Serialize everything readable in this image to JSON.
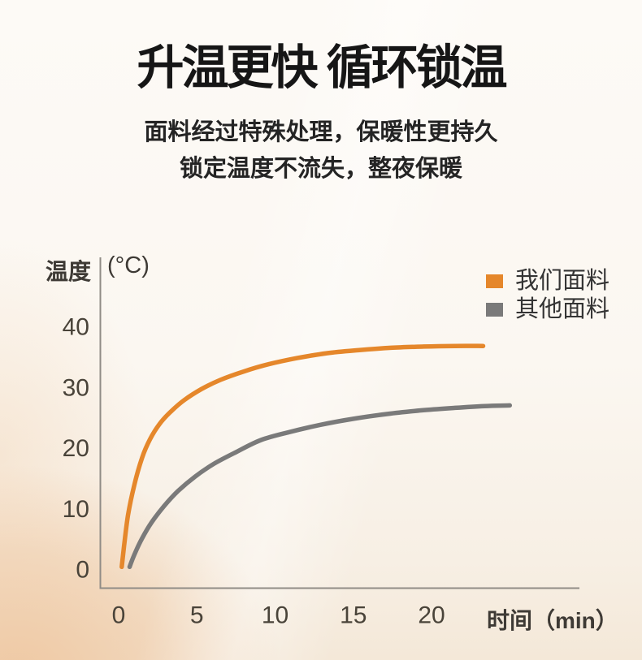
{
  "header": {
    "title": "升温更快 循环锁温",
    "subtitle_lines": [
      "面料经过特殊处理，保暖性更持久",
      "锁定温度不流失，整夜保暖"
    ]
  },
  "chart_data": {
    "type": "line",
    "title": "",
    "ylabel": "温度",
    "y_unit_label": "(°C)",
    "xlabel": "时间（min）",
    "x_ticks": [
      0,
      5,
      10,
      15,
      20
    ],
    "y_ticks": [
      0,
      10,
      20,
      30,
      40
    ],
    "xlim": [
      0,
      29.5
    ],
    "ylim": [
      0,
      51
    ],
    "grid": false,
    "legend_position": "top-right",
    "series": [
      {
        "name": "我们面料",
        "color": "#E5872B",
        "points": [
          [
            0.2,
            0.5
          ],
          [
            0.35,
            4
          ],
          [
            0.6,
            9
          ],
          [
            1.0,
            14
          ],
          [
            1.5,
            18.5
          ],
          [
            2.0,
            21.5
          ],
          [
            2.6,
            24
          ],
          [
            3.3,
            26
          ],
          [
            4.2,
            28
          ],
          [
            5.3,
            29.8
          ],
          [
            6.5,
            31.3
          ],
          [
            8.0,
            32.7
          ],
          [
            9.6,
            33.9
          ],
          [
            11.4,
            34.9
          ],
          [
            13.3,
            35.7
          ],
          [
            15.3,
            36.2
          ],
          [
            17.4,
            36.6
          ],
          [
            19.5,
            36.8
          ],
          [
            21.5,
            36.9
          ],
          [
            23.3,
            36.9
          ]
        ]
      },
      {
        "name": "其他面料",
        "color": "#7A7A7A",
        "points": [
          [
            0.7,
            0.5
          ],
          [
            1.0,
            2.5
          ],
          [
            1.5,
            5.2
          ],
          [
            2.1,
            7.8
          ],
          [
            2.9,
            10.5
          ],
          [
            3.8,
            13.0
          ],
          [
            4.9,
            15.4
          ],
          [
            6.1,
            17.5
          ],
          [
            7.5,
            19.4
          ],
          [
            9.1,
            21.4
          ],
          [
            10.9,
            22.7
          ],
          [
            12.9,
            23.9
          ],
          [
            15.0,
            24.9
          ],
          [
            17.2,
            25.7
          ],
          [
            19.4,
            26.3
          ],
          [
            21.5,
            26.7
          ],
          [
            23.4,
            27.0
          ],
          [
            25.0,
            27.1
          ]
        ]
      }
    ]
  },
  "colors": {
    "title_text": "#161616",
    "subtitle_text": "#242424",
    "tick_text": "#494339",
    "axis_line": "#908C86",
    "series_orange": "#E5872B",
    "series_gray": "#7A7A7A",
    "background_top": "#FDFAF6",
    "background_peach": "#EFC9A4"
  }
}
